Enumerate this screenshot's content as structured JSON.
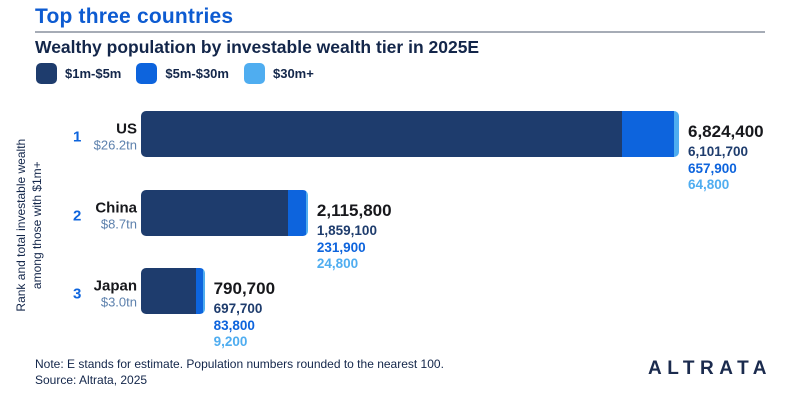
{
  "header": {
    "title": "Top three countries",
    "subtitle": "Wealthy population by investable wealth tier in 2025E"
  },
  "legend": {
    "items": [
      {
        "label": "$1m-$5m"
      },
      {
        "label": "$5m-$30m"
      },
      {
        "label": "$30m+"
      }
    ]
  },
  "axis": {
    "label_line1": "Rank and total investable wealth",
    "label_line2": "among those with $1m+"
  },
  "colors": {
    "tier1": "#1e3c6d",
    "tier2": "#0d64dd",
    "tier3": "#4fadf0",
    "accent_title": "#0d5bd1",
    "dark_text": "#13264a",
    "near_black": "#17181c",
    "rank_blue": "#0d64dd",
    "wealth_muted": "#5d81ad"
  },
  "chart_data": {
    "type": "bar",
    "orientation": "horizontal",
    "title": "Wealthy population by investable wealth tier in 2025E",
    "ylabel": "Rank and total investable wealth among those with $1m+",
    "tiers": [
      "$1m-$5m",
      "$5m-$30m",
      "$30m+"
    ],
    "legend_position": "top-left",
    "grid": false,
    "max_value": 6824400,
    "rows": [
      {
        "rank": "1",
        "country": "US",
        "total_wealth": "$26.2tn",
        "total_label": "6,824,400",
        "total_value": 6824400,
        "tier_labels": [
          "6,101,700",
          "657,900",
          "64,800"
        ],
        "tier_values": [
          6101700,
          657900,
          64800
        ]
      },
      {
        "rank": "2",
        "country": "China",
        "total_wealth": "$8.7tn",
        "total_label": "2,115,800",
        "total_value": 2115800,
        "tier_labels": [
          "1,859,100",
          "231,900",
          "24,800"
        ],
        "tier_values": [
          1859100,
          231900,
          24800
        ]
      },
      {
        "rank": "3",
        "country": "Japan",
        "total_wealth": "$3.0tn",
        "total_label": "790,700",
        "total_value": 790700,
        "tier_labels": [
          "697,700",
          "83,800",
          "9,200"
        ],
        "tier_values": [
          697700,
          83800,
          9200
        ]
      }
    ]
  },
  "footer": {
    "note": "Note: E stands for estimate. Population numbers rounded to the nearest 100.",
    "source": "Source: Altrata, 2025",
    "logo": "ALTRATA"
  }
}
